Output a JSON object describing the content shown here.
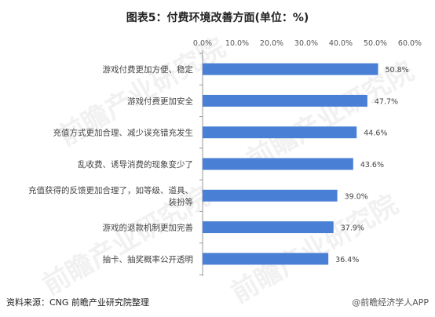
{
  "header": {
    "title": "图表5：付费环境改善方面(单位：%)"
  },
  "footer": {
    "source": "资料来源：CNG 前瞻产业研究院整理",
    "credit": "@前瞻经济学人APP"
  },
  "watermark": {
    "text": "前瞻产业研究院"
  },
  "colors": {
    "bar": "#4a7fd6",
    "grid": "#dddddd",
    "axis": "#999999"
  },
  "chart_data": {
    "type": "bar",
    "orientation": "horizontal",
    "title": "图表5：付费环境改善方面(单位：%)",
    "categories": [
      "游戏付费更加方便、稳定",
      "游戏付费更加安全",
      "充值方式更加合理、减少误充错充发生",
      "乱收费、诱导消费的现象变少了",
      "充值获得的反馈更加合理了，如等级、道具、装扮等",
      "游戏的退款机制更加完善",
      "抽卡、抽奖概率公开透明"
    ],
    "category_lines": [
      [
        "游戏付费更加方便、稳定"
      ],
      [
        "游戏付费更加安全"
      ],
      [
        "充值方式更加合理、减少误充错充发生"
      ],
      [
        "乱收费、诱导消费的现象变少了"
      ],
      [
        "充值获得的反馈更加合理了，如等级、道具、",
        "装扮等"
      ],
      [
        "游戏的退款机制更加完善"
      ],
      [
        "抽卡、抽奖概率公开透明"
      ]
    ],
    "values": [
      50.8,
      47.7,
      44.6,
      43.6,
      39.0,
      37.9,
      36.4
    ],
    "value_labels": [
      "50.8%",
      "47.7%",
      "44.6%",
      "43.6%",
      "39.0%",
      "37.9%",
      "36.4%"
    ],
    "xlim": [
      0,
      60
    ],
    "ticks": [
      "0.0%",
      "10.0%",
      "20.0%",
      "30.0%",
      "40.0%",
      "50.0%",
      "60.0%"
    ],
    "tick_values": [
      0,
      10,
      20,
      30,
      40,
      50,
      60
    ],
    "xaxis_position": "top",
    "grid": false,
    "legend": "none"
  }
}
